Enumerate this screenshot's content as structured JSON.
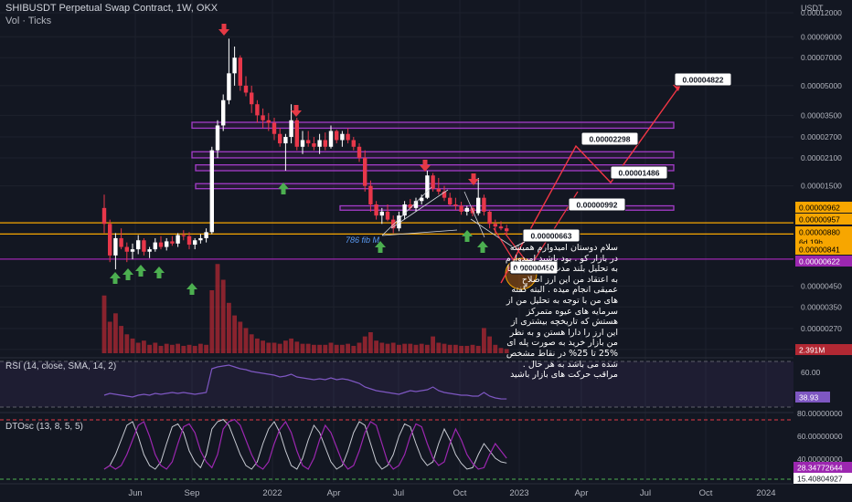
{
  "header": {
    "title": "SHIBUSDT Perpetual Swap Contract, 1W, OKX",
    "volume_label": "Vol · Ticks"
  },
  "price_axis": {
    "currency": "USDT",
    "ticks": [
      "0.00012000",
      "0.00009000",
      "0.00007000",
      "0.00005000",
      "0.00003500",
      "0.00002700",
      "0.00002100",
      "0.00001500",
      "0.00000450",
      "0.00000350",
      "0.00000270",
      "0.00000210"
    ],
    "badges": [
      {
        "text": "0.00000962",
        "bg": "#f7a600",
        "fg": "#000000"
      },
      {
        "text": "0.00000957",
        "bg": "#f7a600",
        "fg": "#000000"
      },
      {
        "text": "0.00000880",
        "bg": "#f7a600",
        "fg": "#000000"
      },
      {
        "text": "6d 19h",
        "bg": "#f7a600",
        "fg": "#000000"
      },
      {
        "text": "0.00000841",
        "bg": "#f7a600",
        "fg": "#000000"
      },
      {
        "text": "0.00000622",
        "bg": "#9c27b0",
        "fg": "#ffffff"
      },
      {
        "text": "2.391M",
        "bg": "#b22833",
        "fg": "#ffffff"
      }
    ]
  },
  "time_axis": {
    "labels": [
      "Jun",
      "Sep",
      "2022",
      "Apr",
      "Jul",
      "Oct",
      "2023",
      "Apr",
      "Jul",
      "Oct",
      "2024"
    ]
  },
  "annotations": {
    "fib_label": "786 fib M",
    "price_labels": [
      "0.00004822",
      "0.00002298",
      "0.00001486",
      "0.00000992",
      "0.00000663",
      "0.00000450"
    ],
    "persian_text": "سلام دوستان امیدوارم همیشه در بازار کو . بود باشید امیدوارم به تحلیل بلند مدت این ارز شیبا به اعتقاد من این ارز اصلاح عمیقی انجام میده . البته گفته های من با توجه به تحلیل من از سرمایه های عیوه متمرکز هستش که تاریخچه بیشتری از این ارز را دارا هستن و به نظر من بازار خرید به صورت پله ای %25 تا 25% در نقاط مشخص شده می باشد به هر حال . مراقب حرکت های بازار باشید"
  },
  "rsi": {
    "label": "RSI (14, close, SMA, 14, 2)",
    "ticks": [
      "60.00"
    ],
    "value_badge": {
      "text": "38.93",
      "bg": "#7e57c2",
      "fg": "#ffffff"
    }
  },
  "dtosc": {
    "label": "DTOsc (13, 8, 5, 5)",
    "ticks": [
      "80.00000000",
      "60.00000000",
      "40.00000000"
    ],
    "badges": [
      {
        "text": "28.34772644",
        "bg": "#9c27b0",
        "fg": "#ffffff"
      },
      {
        "text": "15.40804927",
        "bg": "#ffffff",
        "fg": "#131722"
      }
    ]
  },
  "chart_data": {
    "type": "candlestick",
    "title": "SHIBUSDT Perpetual Swap Contract, 1W, OKX",
    "y_axis": {
      "scale": "log",
      "range": [
        1.9e-06,
        0.00014
      ],
      "unit": "USDT"
    },
    "x_axis": {
      "labels": [
        "Jun",
        "Sep",
        "2022",
        "Apr",
        "Jul",
        "Oct",
        "2023",
        "Apr",
        "Jul",
        "Oct",
        "2024"
      ]
    },
    "candles": [
      [
        1.15e-05,
        1.35e-05,
        8.5e-06,
        9.5e-06
      ],
      [
        9.5e-06,
        1e-05,
        6e-06,
        6.5e-06
      ],
      [
        6.5e-06,
        8.5e-06,
        5.5e-06,
        8e-06
      ],
      [
        8e-06,
        9e-06,
        7e-06,
        7.2e-06
      ],
      [
        7.2e-06,
        7.6e-06,
        6e-06,
        6.8e-06
      ],
      [
        6.8e-06,
        7.5e-06,
        6.2e-06,
        7e-06
      ],
      [
        7e-06,
        8.3e-06,
        6.6e-06,
        7.8e-06
      ],
      [
        7.8e-06,
        8e-06,
        6.5e-06,
        6.8e-06
      ],
      [
        6.8e-06,
        7.2e-06,
        6.3e-06,
        7e-06
      ],
      [
        7e-06,
        8e-06,
        6.8e-06,
        7.6e-06
      ],
      [
        7.6e-06,
        8.2e-06,
        7e-06,
        7.2e-06
      ],
      [
        7.2e-06,
        8e-06,
        6.9e-06,
        7.7e-06
      ],
      [
        7.7e-06,
        8.2e-06,
        7.3e-06,
        7.5e-06
      ],
      [
        7.5e-06,
        8.5e-06,
        7.2e-06,
        8.3e-06
      ],
      [
        8.3e-06,
        8.8e-06,
        7.8e-06,
        8.2e-06
      ],
      [
        8.2e-06,
        8.6e-06,
        7e-06,
        7.4e-06
      ],
      [
        7.4e-06,
        8e-06,
        7e-06,
        7.8e-06
      ],
      [
        7.8e-06,
        8.4e-06,
        7.5e-06,
        8e-06
      ],
      [
        8e-06,
        9e-06,
        7.6e-06,
        8.6e-06
      ],
      [
        8.6e-06,
        2.4e-05,
        8.4e-06,
        2.3e-05
      ],
      [
        2.3e-05,
        3.3e-05,
        2.1e-05,
        3.1e-05
      ],
      [
        3.1e-05,
        4.5e-05,
        2.9e-05,
        4.2e-05
      ],
      [
        4.2e-05,
        8.8e-05,
        4e-05,
        5.8e-05
      ],
      [
        5.8e-05,
        8e-05,
        5e-05,
        7e-05
      ],
      [
        7e-05,
        7.2e-05,
        4.7e-05,
        5e-05
      ],
      [
        5e-05,
        5.6e-05,
        4.4e-05,
        4.6e-05
      ],
      [
        4.6e-05,
        5e-05,
        3.6e-05,
        4e-05
      ],
      [
        4e-05,
        4.2e-05,
        3.2e-05,
        3.5e-05
      ],
      [
        3.5e-05,
        3.8e-05,
        3e-05,
        3.3e-05
      ],
      [
        3.3e-05,
        3.6e-05,
        2.9e-05,
        3.2e-05
      ],
      [
        3.2e-05,
        3.4e-05,
        2.6e-05,
        2.8e-05
      ],
      [
        2.8e-05,
        3e-05,
        2.4e-05,
        2.5e-05
      ],
      [
        2.5e-05,
        2.8e-05,
        1.8e-05,
        2.7e-05
      ],
      [
        2.7e-05,
        4e-05,
        2.5e-05,
        3.3e-05
      ],
      [
        3.3e-05,
        3.4e-05,
        2.3e-05,
        2.4e-05
      ],
      [
        2.4e-05,
        2.9e-05,
        2.2e-05,
        2.6e-05
      ],
      [
        2.6e-05,
        2.9e-05,
        2.4e-05,
        2.5e-05
      ],
      [
        2.5e-05,
        2.7e-05,
        2.3e-05,
        2.4e-05
      ],
      [
        2.4e-05,
        2.8e-05,
        2.2e-05,
        2.6e-05
      ],
      [
        2.6e-05,
        2.85e-05,
        2.3e-05,
        2.4e-05
      ],
      [
        2.4e-05,
        3.1e-05,
        2.35e-05,
        2.9e-05
      ],
      [
        2.9e-05,
        2.95e-05,
        2.5e-05,
        2.6e-05
      ],
      [
        2.6e-05,
        2.9e-05,
        2.4e-05,
        2.8e-05
      ],
      [
        2.8e-05,
        3e-05,
        2.5e-05,
        2.6e-05
      ],
      [
        2.6e-05,
        2.7e-05,
        2.3e-05,
        2.4e-05
      ],
      [
        2.4e-05,
        2.5e-05,
        2e-05,
        2.1e-05
      ],
      [
        2.1e-05,
        2.3e-05,
        1.4e-05,
        1.5e-05
      ],
      [
        1.5e-05,
        1.6e-05,
        1.1e-05,
        1.2e-05
      ],
      [
        1.2e-05,
        1.25e-05,
        1e-05,
        1.05e-05
      ],
      [
        1.05e-05,
        1.15e-05,
        9.5e-06,
        1.1e-05
      ],
      [
        1.1e-05,
        1.2e-05,
        9.8e-06,
        1e-05
      ],
      [
        1e-05,
        1.05e-05,
        8.5e-06,
        9e-06
      ],
      [
        9e-06,
        1.1e-05,
        8.7e-06,
        1.05e-05
      ],
      [
        1.05e-05,
        1.25e-05,
        1e-05,
        1.2e-05
      ],
      [
        1.2e-05,
        1.28e-05,
        1.12e-05,
        1.15e-05
      ],
      [
        1.15e-05,
        1.3e-05,
        1.1e-05,
        1.25e-05
      ],
      [
        1.25e-05,
        1.35e-05,
        1.2e-05,
        1.3e-05
      ],
      [
        1.3e-05,
        1.8e-05,
        1.28e-05,
        1.7e-05
      ],
      [
        1.7e-05,
        1.75e-05,
        1.4e-05,
        1.45e-05
      ],
      [
        1.45e-05,
        1.65e-05,
        1.35e-05,
        1.4e-05
      ],
      [
        1.4e-05,
        1.5e-05,
        1.25e-05,
        1.3e-05
      ],
      [
        1.3e-05,
        1.38e-05,
        1.18e-05,
        1.2e-05
      ],
      [
        1.2e-05,
        1.3e-05,
        1.12e-05,
        1.18e-05
      ],
      [
        1.18e-05,
        1.24e-05,
        1.06e-05,
        1.1e-05
      ],
      [
        1.1e-05,
        1.18e-05,
        1.05e-05,
        1.15e-05
      ],
      [
        1.15e-05,
        1.18e-05,
        1.04e-05,
        1.08e-05
      ],
      [
        1.08e-05,
        1.65e-05,
        1.05e-05,
        1.3e-05
      ],
      [
        1.3e-05,
        1.35e-05,
        1.05e-05,
        1.1e-05
      ],
      [
        1.1e-05,
        1.12e-05,
        9e-06,
        9.5e-06
      ],
      [
        9.5e-06,
        1e-05,
        8.5e-06,
        9.2e-06
      ],
      [
        9.2e-06,
        9.8e-06,
        8.8e-06,
        9e-06
      ],
      [
        9e-06,
        9.4e-06,
        8.4e-06,
        8.7e-06
      ]
    ],
    "volume_in_millions": [
      55,
      30,
      38,
      26,
      18,
      14,
      10,
      12,
      8,
      10,
      7,
      9,
      8,
      9,
      7,
      8,
      7,
      9,
      8,
      60,
      85,
      70,
      48,
      36,
      30,
      24,
      18,
      14,
      12,
      10,
      10,
      9,
      12,
      14,
      11,
      9,
      9,
      8,
      8,
      8,
      10,
      8,
      8,
      9,
      7,
      10,
      16,
      20,
      12,
      10,
      9,
      10,
      8,
      9,
      9,
      8,
      9,
      8,
      16,
      10,
      9,
      8,
      8,
      7,
      7,
      8,
      7,
      24,
      16,
      8,
      5,
      4
    ],
    "horizontal_levels": [
      {
        "type": "zone",
        "from": 3e-05,
        "to": 3.22e-05
      },
      {
        "type": "zone",
        "from": 2.1e-05,
        "to": 2.26e-05
      },
      {
        "type": "zone",
        "from": 1.8e-05,
        "to": 1.93e-05
      },
      {
        "type": "zone",
        "from": 1.45e-05,
        "to": 1.54e-05
      },
      {
        "type": "zone",
        "from": 1.12e-05,
        "to": 1.18e-05
      },
      {
        "type": "line",
        "price": 9.62e-06,
        "color": "#f7a600"
      },
      {
        "type": "line",
        "price": 8.41e-06,
        "color": "#f7a600"
      },
      {
        "type": "line",
        "price": 6.22e-06,
        "color": "#9c27b0"
      }
    ],
    "projection_path": [
      4.5e-06,
      9.9e-06,
      2.3e-05,
      1.49e-05,
      4.82e-05
    ],
    "rsi_series": [
      43,
      45,
      44,
      43,
      42,
      41,
      43,
      44,
      43,
      45,
      44,
      45,
      46,
      45,
      46,
      45,
      44,
      45,
      46,
      72,
      74,
      75,
      76,
      74,
      72,
      71,
      69,
      68,
      67,
      66,
      65,
      63,
      64,
      66,
      63,
      62,
      61,
      60,
      61,
      60,
      62,
      60,
      61,
      60,
      58,
      56,
      52,
      50,
      48,
      47,
      46,
      45,
      44,
      46,
      48,
      47,
      48,
      49,
      52,
      48,
      46,
      45,
      44,
      43,
      43,
      42,
      42,
      46,
      42,
      40,
      39,
      38.93
    ],
    "dtosc_series": [
      20,
      25,
      40,
      60,
      80,
      85,
      65,
      40,
      25,
      20,
      30,
      55,
      78,
      82,
      70,
      45,
      30,
      22,
      40,
      75,
      85,
      88,
      80,
      60,
      40,
      25,
      20,
      30,
      55,
      75,
      85,
      70,
      45,
      25,
      20,
      35,
      60,
      80,
      70,
      50,
      30,
      20,
      25,
      45,
      70,
      85,
      80,
      55,
      30,
      20,
      25,
      40,
      65,
      82,
      78,
      55,
      35,
      25,
      30,
      55,
      75,
      60,
      40,
      28,
      20,
      22,
      40,
      55,
      45,
      35,
      30,
      28.35
    ]
  }
}
